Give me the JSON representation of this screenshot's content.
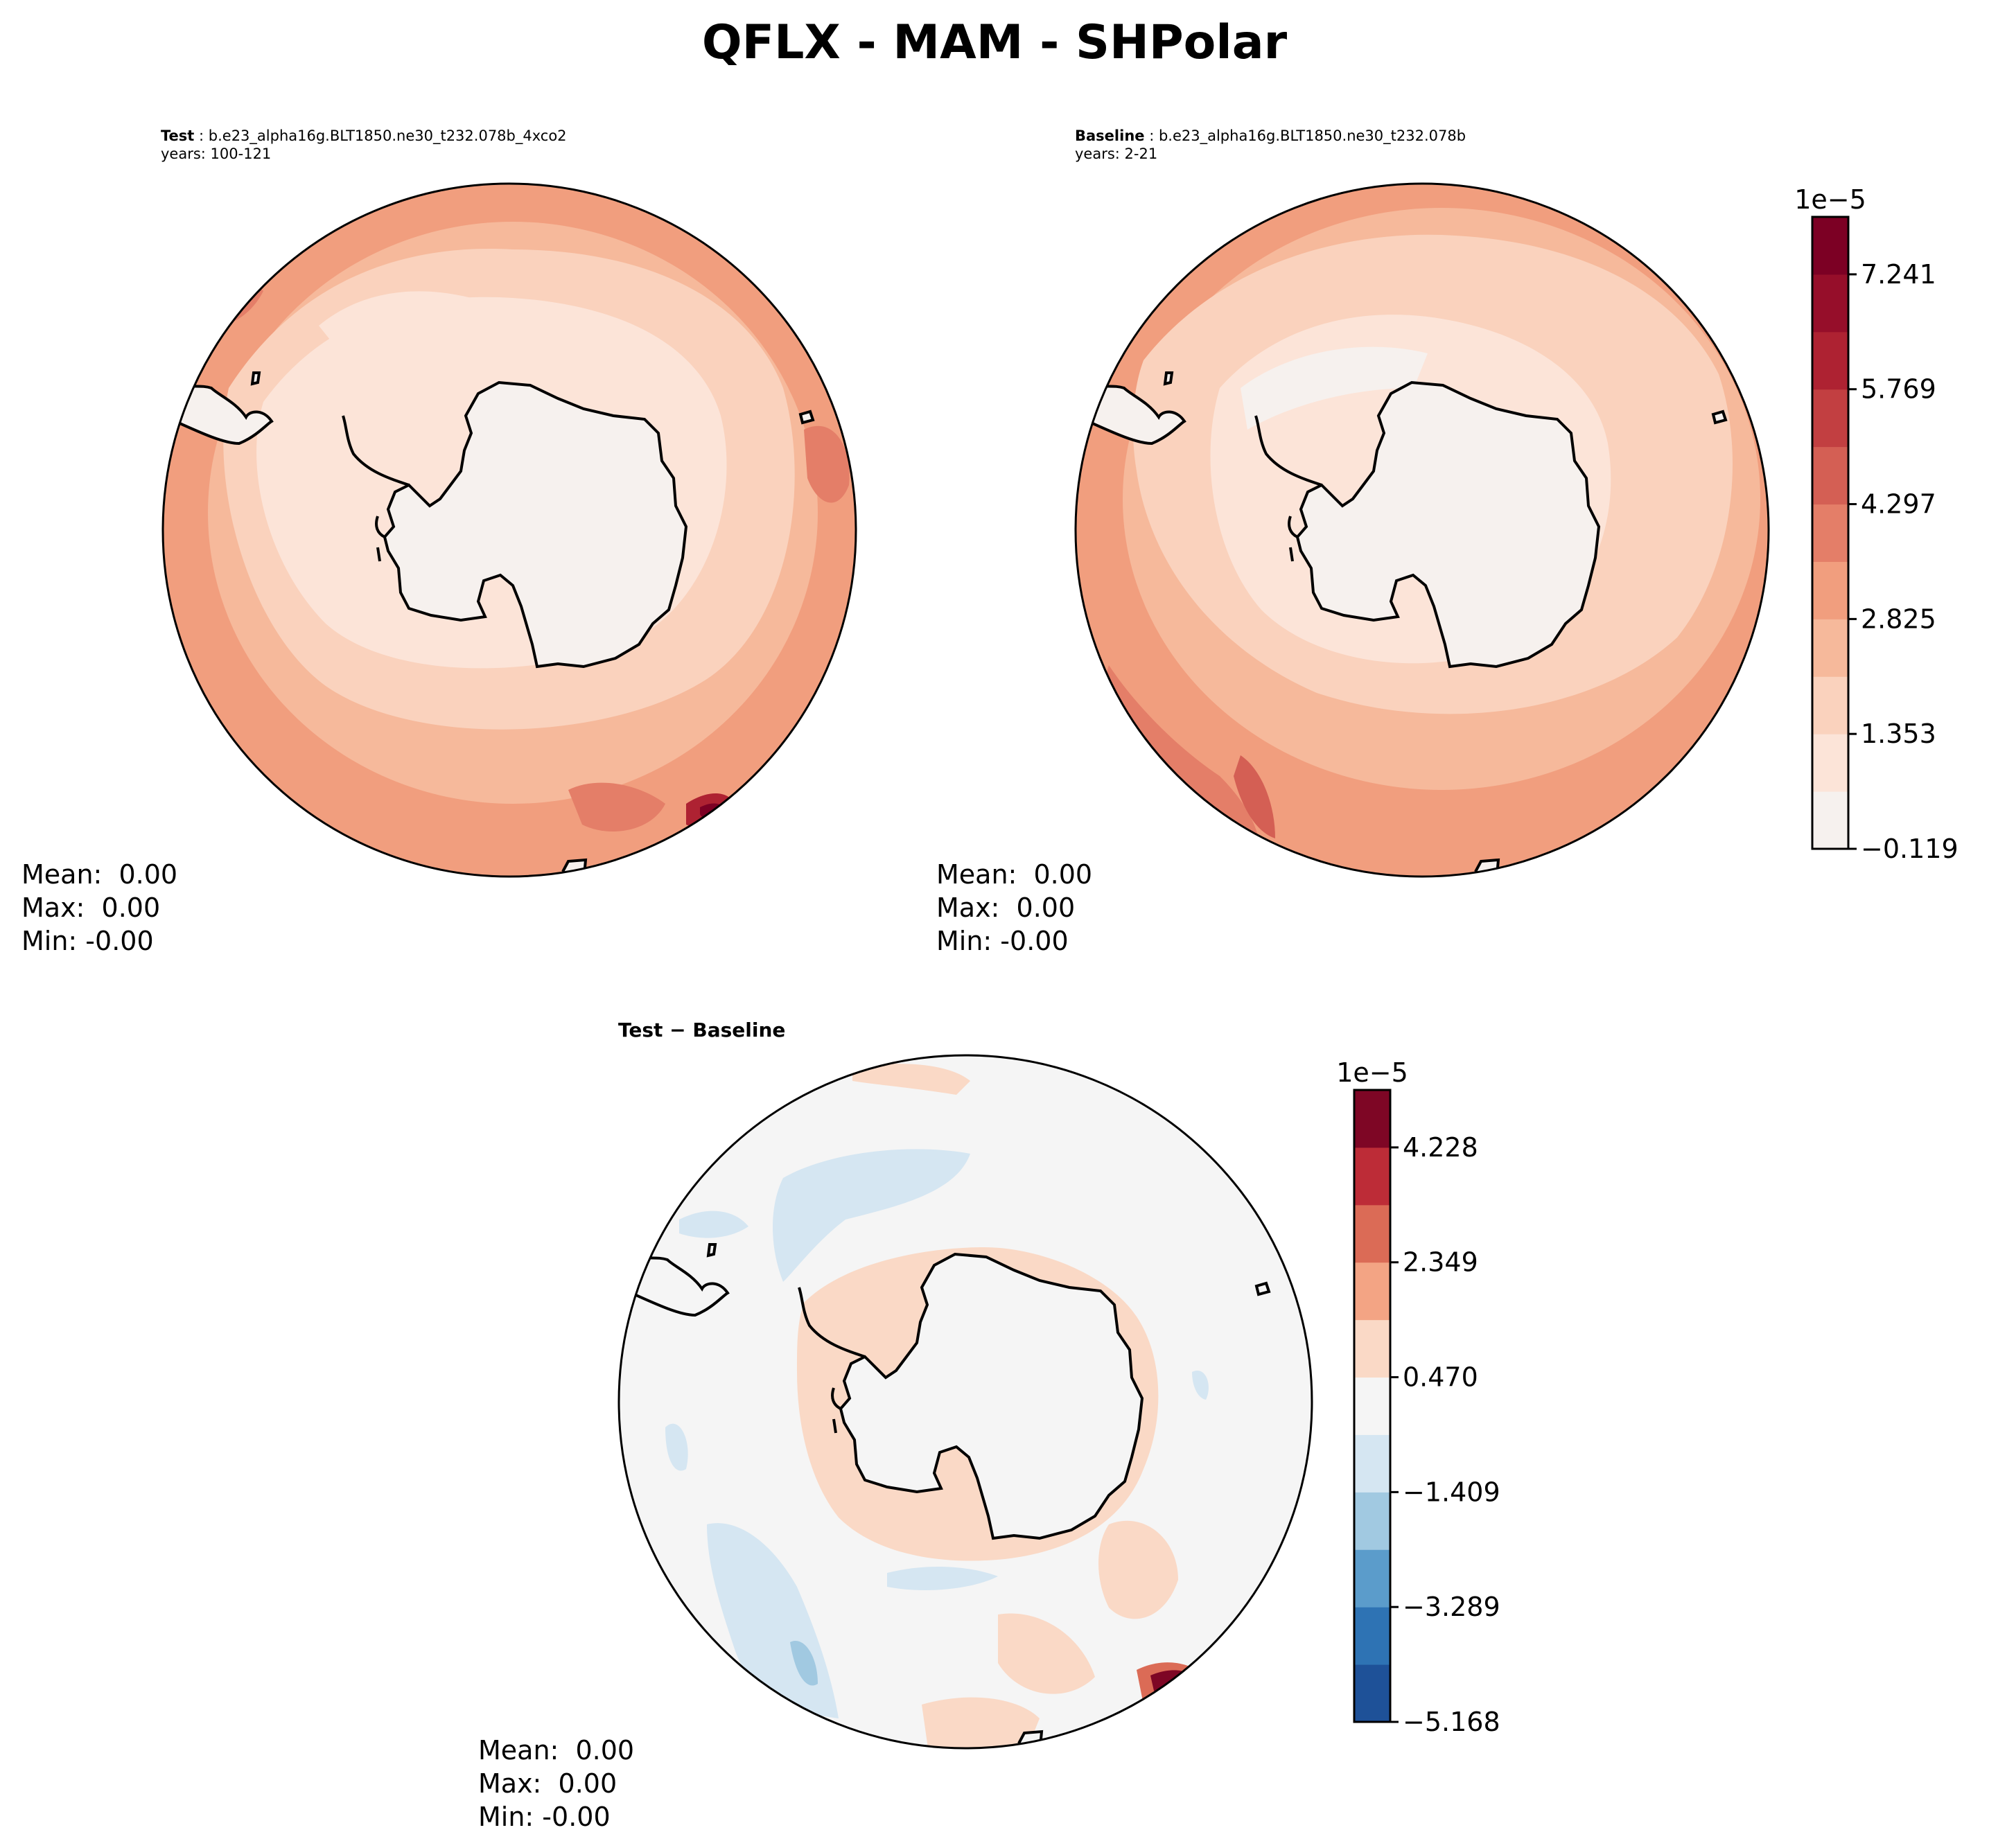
{
  "figure": {
    "title": "QFLX - MAM - SHPolar"
  },
  "panels": {
    "test": {
      "label": "Test",
      "case": "b.e23_alpha16g.BLT1850.ne30_t232.078b_4xco2",
      "years": "years: 100-121",
      "stats": {
        "mean": "Mean:  0.00",
        "max": "Max:  0.00",
        "min": "Min: -0.00"
      }
    },
    "baseline": {
      "label": "Baseline",
      "case": "b.e23_alpha16g.BLT1850.ne30_t232.078b",
      "years": "years: 2-21",
      "stats": {
        "mean": "Mean:  0.00",
        "max": "Max:  0.00",
        "min": "Min: -0.00"
      }
    },
    "diff": {
      "label": "Test − Baseline",
      "stats": {
        "mean": "Mean:  0.00",
        "max": "Max:  0.00",
        "min": "Min: -0.00"
      }
    }
  },
  "colors": {
    "land": "#f6f1ee",
    "outline": "#000000"
  },
  "chart_data": [
    {
      "type": "heatmap",
      "name": "Test",
      "projection": "south-polar-stereographic",
      "mean": 0.0,
      "max": 0.0,
      "min": -0.0
    },
    {
      "type": "heatmap",
      "name": "Baseline",
      "projection": "south-polar-stereographic",
      "mean": 0.0,
      "max": 0.0,
      "min": -0.0
    },
    {
      "type": "heatmap",
      "name": "Test − Baseline",
      "projection": "south-polar-stereographic",
      "mean": 0.0,
      "max": 0.0,
      "min": -0.0
    }
  ],
  "colorbars": {
    "main": {
      "exponent": "1e−5",
      "tick_labels": [
        "−0.119",
        "1.353",
        "2.825",
        "4.297",
        "5.769",
        "7.241"
      ],
      "levels": 11,
      "colors": [
        "#f6f1ee",
        "#fce4d8",
        "#fad2bd",
        "#f6b99b",
        "#f19e7e",
        "#e47e68",
        "#d45f54",
        "#c23f41",
        "#ae2232",
        "#960e2a",
        "#7c0024"
      ]
    },
    "diff": {
      "exponent": "1e−5",
      "tick_labels": [
        "−5.168",
        "−3.289",
        "−1.409",
        "0.470",
        "2.349",
        "4.228"
      ],
      "levels": 11,
      "colors": [
        "#1e5198",
        "#2e73b4",
        "#5b9ccb",
        "#a1c9e1",
        "#d5e6f2",
        "#f5f5f5",
        "#fad9c6",
        "#f3a484",
        "#db6b56",
        "#bd2c37",
        "#7e0625"
      ]
    }
  }
}
